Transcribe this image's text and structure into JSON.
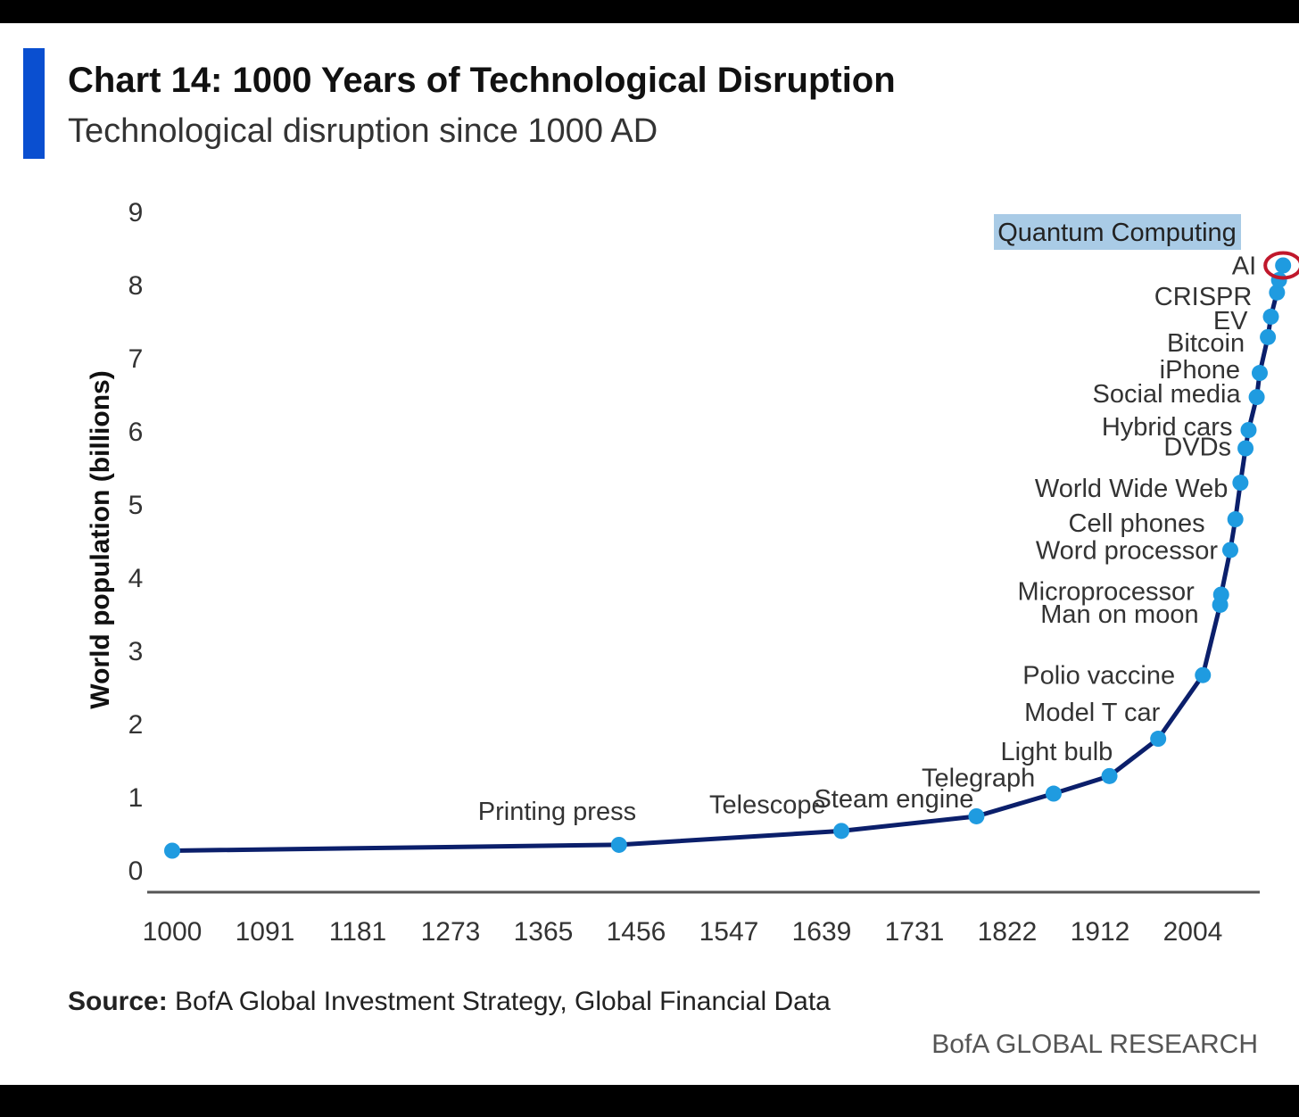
{
  "header": {
    "title": "Chart 14: 1000 Years of Technological Disruption",
    "subtitle": "Technological disruption since 1000 AD",
    "accent_color": "#0a4fd0"
  },
  "footer": {
    "source_label": "Source:",
    "source_text": " BofA Global Investment Strategy, Global Financial Data",
    "brand": "BofA GLOBAL RESEARCH"
  },
  "chart_data": {
    "type": "line",
    "ylabel": "World population (billions)",
    "ylim": [
      0,
      9
    ],
    "yticks": [
      "0",
      "1",
      "2",
      "3",
      "4",
      "5",
      "6",
      "7",
      "8",
      "9"
    ],
    "xlim": [
      1000,
      2100
    ],
    "xticks": [
      "1000",
      "1091",
      "1181",
      "1273",
      "1365",
      "1456",
      "1547",
      "1639",
      "1731",
      "1822",
      "1912",
      "2004"
    ],
    "grid": false,
    "line_color": "#0b1f6b",
    "marker_color": "#1f9be0",
    "highlight_color": "#c0182c",
    "highlight_label_bg": "#a9cbe6",
    "series": [
      {
        "values": [
          {
            "x": 1000,
            "y": 0.25,
            "label": ""
          },
          {
            "x": 1440,
            "y": 0.33,
            "label": "Printing press"
          },
          {
            "x": 1659,
            "y": 0.52,
            "label": "Telescope"
          },
          {
            "x": 1792,
            "y": 0.72,
            "label": "Steam engine"
          },
          {
            "x": 1868,
            "y": 1.03,
            "label": "Telegraph"
          },
          {
            "x": 1923,
            "y": 1.27,
            "label": "Light bulb"
          },
          {
            "x": 1971,
            "y": 1.78,
            "label": "Model T car"
          },
          {
            "x": 2015,
            "y": 2.65,
            "label": "Polio vaccine"
          },
          {
            "x": 2032,
            "y": 3.61,
            "label": "Man on moon"
          },
          {
            "x": 2033,
            "y": 3.75,
            "label": "Microprocessor"
          },
          {
            "x": 2042,
            "y": 4.36,
            "label": "Word processor"
          },
          {
            "x": 2047,
            "y": 4.78,
            "label": "Cell phones"
          },
          {
            "x": 2052,
            "y": 5.28,
            "label": "World Wide Web"
          },
          {
            "x": 2057,
            "y": 5.75,
            "label": "DVDs"
          },
          {
            "x": 2060,
            "y": 6.0,
            "label": "Hybrid cars"
          },
          {
            "x": 2068,
            "y": 6.45,
            "label": "Social media"
          },
          {
            "x": 2071,
            "y": 6.78,
            "label": "iPhone"
          },
          {
            "x": 2079,
            "y": 7.27,
            "label": "Bitcoin"
          },
          {
            "x": 2082,
            "y": 7.55,
            "label": "EV"
          },
          {
            "x": 2088,
            "y": 7.88,
            "label": "CRISPR"
          },
          {
            "x": 2090,
            "y": 8.05,
            "label": ""
          },
          {
            "x": 2094,
            "y": 8.25,
            "label": "AI",
            "highlight": true
          }
        ]
      }
    ],
    "annotation": "Quantum Computing"
  }
}
